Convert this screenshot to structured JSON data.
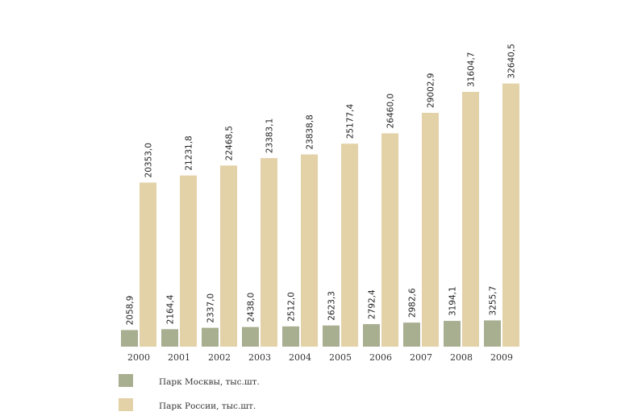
{
  "chart_data": {
    "type": "bar",
    "categories": [
      "2000",
      "2001",
      "2002",
      "2003",
      "2004",
      "2005",
      "2006",
      "2007",
      "2008",
      "2009"
    ],
    "series": [
      {
        "name": "Парк Москвы, тыс.шт.",
        "color": "#a8ae90",
        "values": [
          2058.9,
          2164.4,
          2337.0,
          2438.0,
          2512.0,
          2623.3,
          2792.4,
          2982.6,
          3194.1,
          3255.7
        ],
        "labels": [
          "2058,9",
          "2164,4",
          "2337,0",
          "2438,0",
          "2512,0",
          "2623,3",
          "2792,4",
          "2982,6",
          "3194,1",
          "3255,7"
        ]
      },
      {
        "name": "Парк России, тыс.шт.",
        "color": "#e3d1a8",
        "values": [
          20353.0,
          21231.8,
          22468.5,
          23383.1,
          23838.8,
          25177.4,
          26460.0,
          29002.9,
          31604.7,
          32640.5
        ],
        "labels": [
          "20353,0",
          "21231,8",
          "22468,5",
          "23383,1",
          "23838,8",
          "25177,4",
          "26460,0",
          "29002,9",
          "31604,7",
          "32640,5"
        ]
      }
    ],
    "title": "",
    "xlabel": "",
    "ylabel": "",
    "grid": false,
    "legend_position": "bottom-left"
  }
}
